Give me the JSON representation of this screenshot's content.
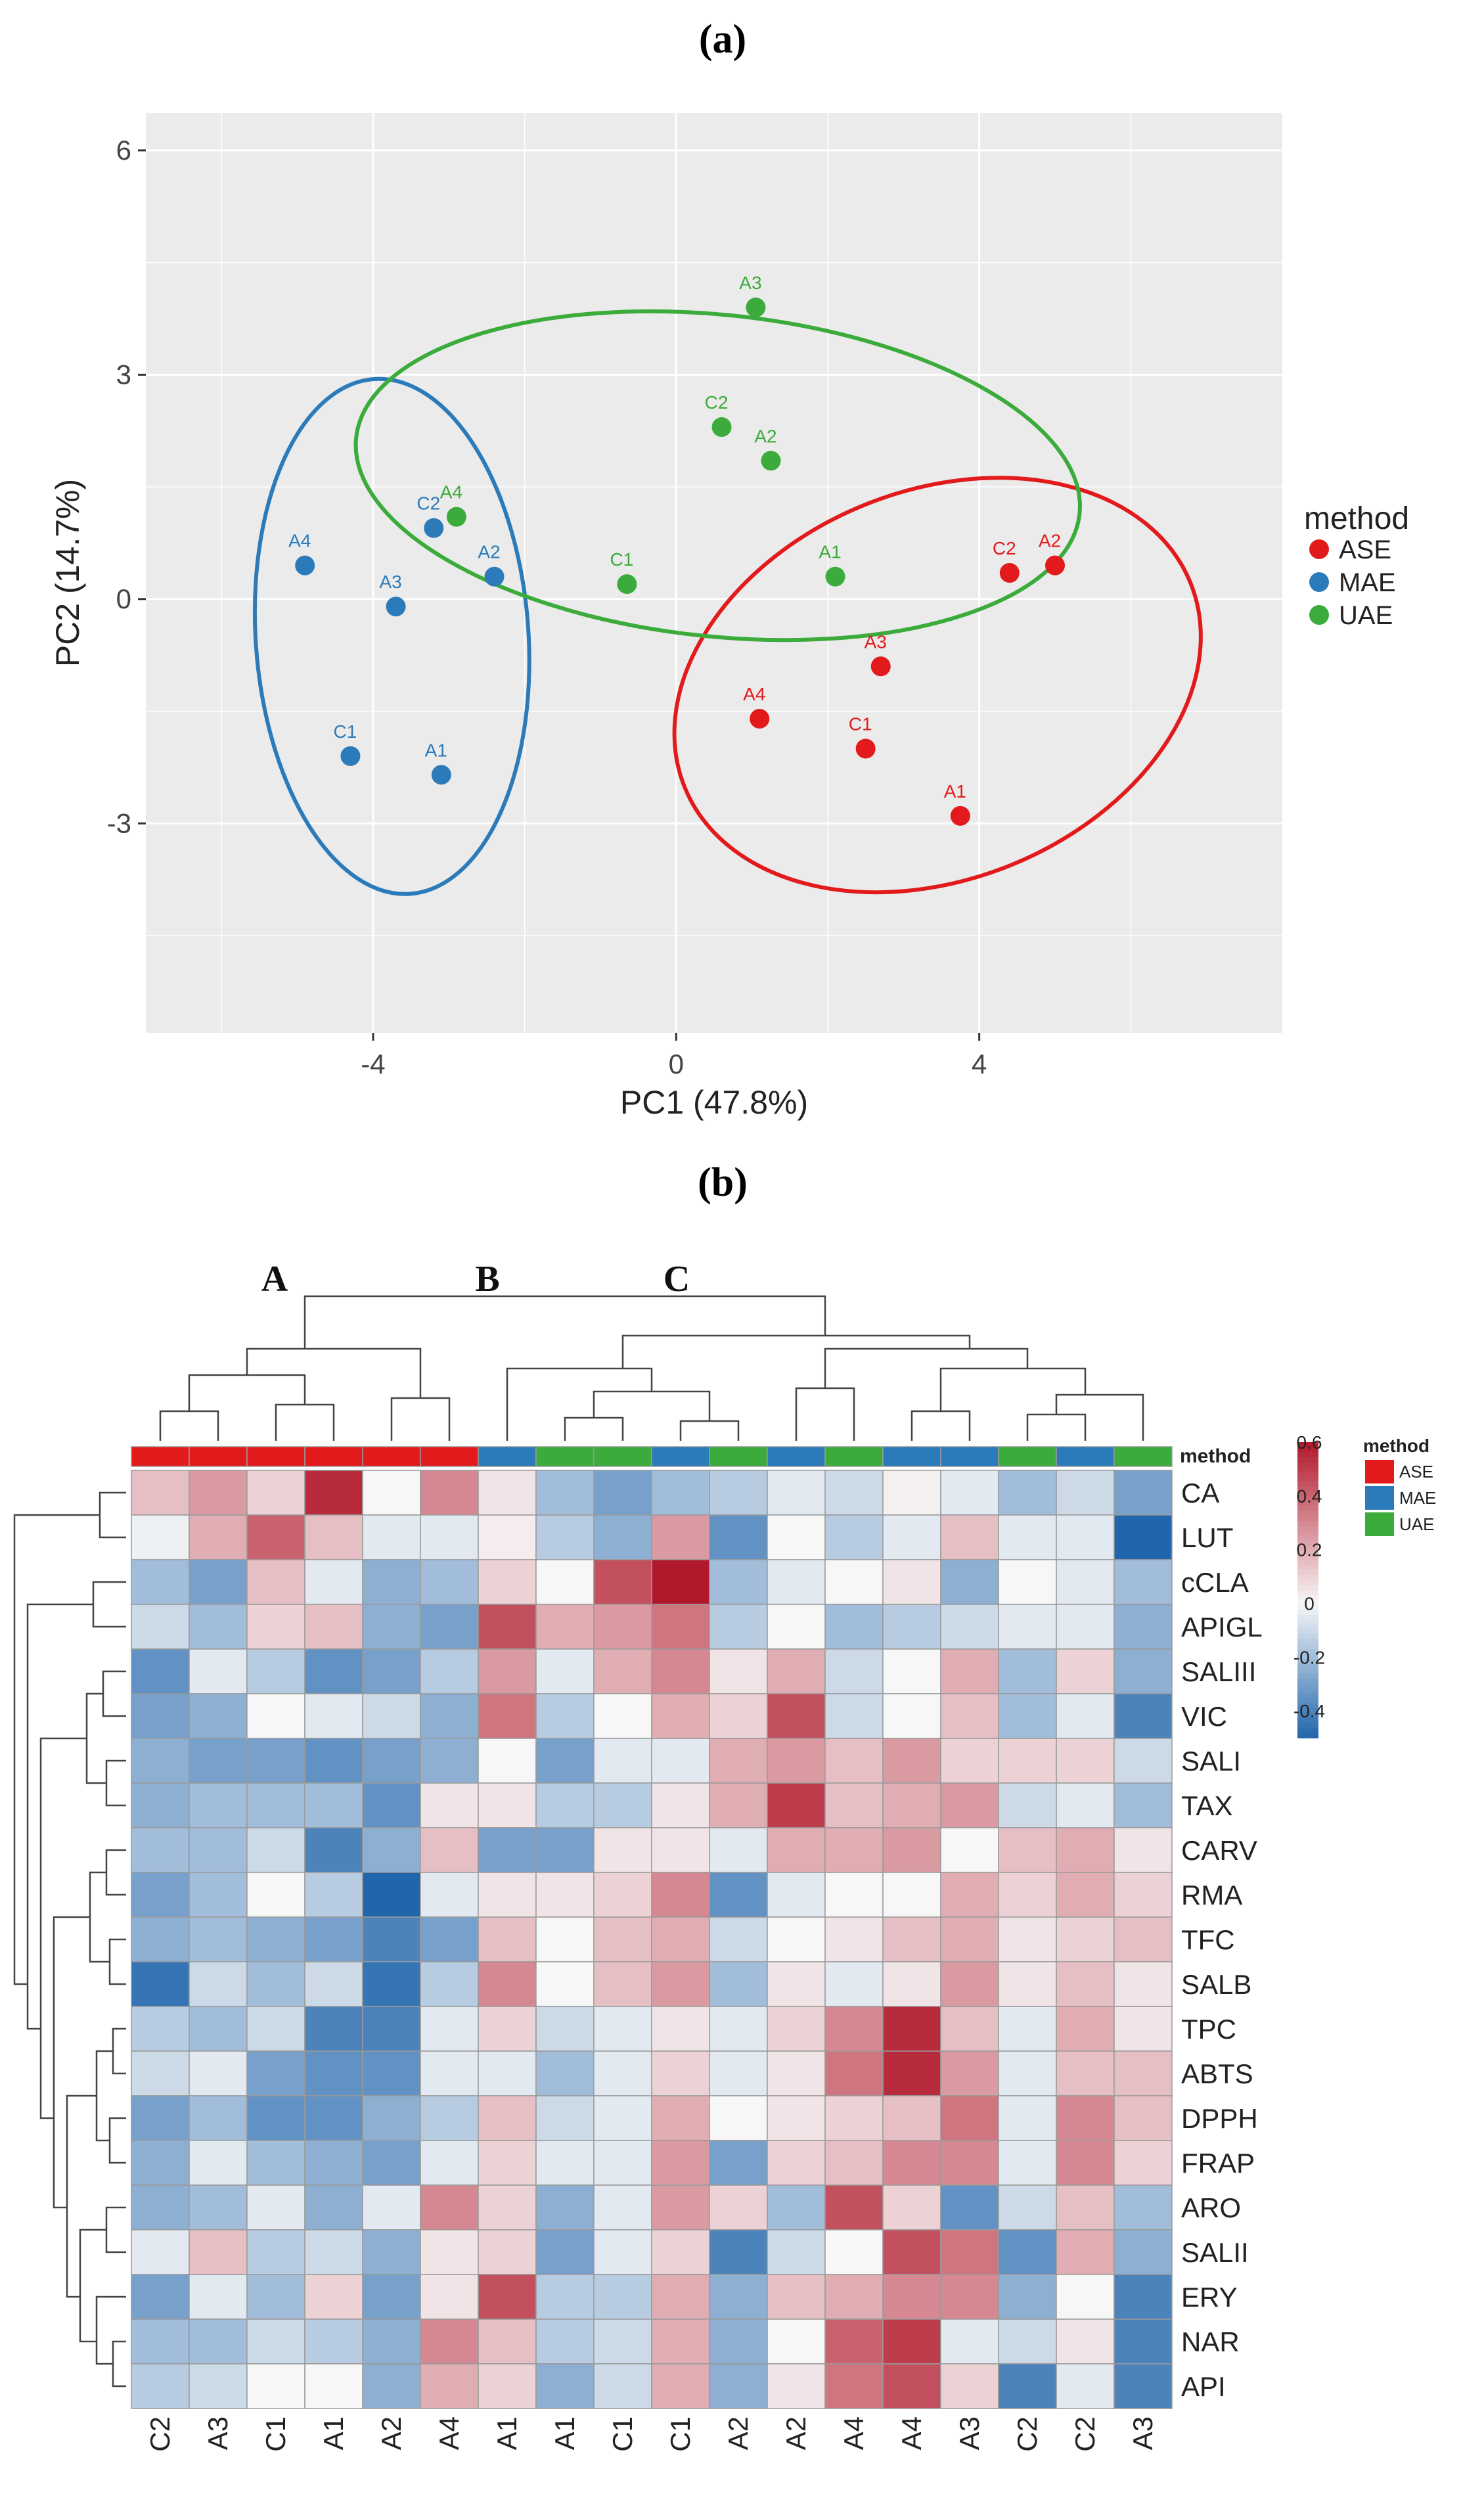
{
  "panel_labels": {
    "a": "(a)",
    "b": "(b)"
  },
  "chart_data": [
    {
      "type": "scatter",
      "title": "",
      "xlabel": "PC1 (47.8%)",
      "ylabel": "PC2 (14.7%)",
      "xlim": [
        -7,
        8
      ],
      "ylim": [
        -5.8,
        6.5
      ],
      "xticks": [
        "-4",
        "0",
        "4"
      ],
      "yticks": [
        "6",
        "3",
        "0",
        "-3"
      ],
      "grid": true,
      "legend": {
        "title": "method",
        "position": "right",
        "entries": [
          "ASE",
          "MAE",
          "UAE"
        ]
      },
      "colors": {
        "ASE": "#e31a1c",
        "MAE": "#2b7bba",
        "UAE": "#3bab3b",
        "panel_bg": "#ebebeb",
        "grid": "#ffffff"
      },
      "series": [
        {
          "name": "ASE",
          "points": [
            {
              "label": "C2",
              "x": 4.4,
              "y": 0.35
            },
            {
              "label": "A2",
              "x": 5.0,
              "y": 0.45
            },
            {
              "label": "A3",
              "x": 2.7,
              "y": -0.9
            },
            {
              "label": "A4",
              "x": 1.1,
              "y": -1.6
            },
            {
              "label": "C1",
              "x": 2.5,
              "y": -2.0
            },
            {
              "label": "A1",
              "x": 3.75,
              "y": -2.9
            }
          ],
          "ellipse": {
            "cx": 3.45,
            "cy": -1.15,
            "rx": 3.6,
            "ry": 2.6,
            "angle_deg": -22
          }
        },
        {
          "name": "MAE",
          "points": [
            {
              "label": "A4",
              "x": -4.9,
              "y": 0.45
            },
            {
              "label": "C2",
              "x": -3.2,
              "y": 0.95
            },
            {
              "label": "A2",
              "x": -2.4,
              "y": 0.3
            },
            {
              "label": "A3",
              "x": -3.7,
              "y": -0.1
            },
            {
              "label": "C1",
              "x": -4.3,
              "y": -2.1
            },
            {
              "label": "A1",
              "x": -3.1,
              "y": -2.35
            }
          ],
          "ellipse": {
            "cx": -3.75,
            "cy": -0.5,
            "rx": 1.8,
            "ry": 3.45,
            "angle_deg": -4
          }
        },
        {
          "name": "UAE",
          "points": [
            {
              "label": "A4",
              "x": -2.9,
              "y": 1.1
            },
            {
              "label": "C1",
              "x": -0.65,
              "y": 0.2
            },
            {
              "label": "A3",
              "x": 1.05,
              "y": 3.9
            },
            {
              "label": "C2",
              "x": 0.6,
              "y": 2.3
            },
            {
              "label": "A2",
              "x": 1.25,
              "y": 1.85
            },
            {
              "label": "A1",
              "x": 2.1,
              "y": 0.3
            }
          ],
          "ellipse": {
            "cx": 0.55,
            "cy": 1.65,
            "rx": 4.8,
            "ry": 2.15,
            "angle_deg": 6
          }
        }
      ]
    },
    {
      "type": "heatmap",
      "title": "",
      "cluster_labels": [
        "A",
        "B",
        "C"
      ],
      "columns": [
        "C2",
        "A3",
        "C1",
        "A1",
        "A2",
        "A4",
        "A1",
        "A1",
        "C1",
        "C1",
        "A2",
        "A2",
        "A4",
        "A4",
        "A3",
        "C2",
        "C2",
        "A3"
      ],
      "column_methods": [
        "ASE",
        "ASE",
        "ASE",
        "ASE",
        "ASE",
        "ASE",
        "MAE",
        "UAE",
        "UAE",
        "MAE",
        "UAE",
        "MAE",
        "UAE",
        "MAE",
        "MAE",
        "UAE",
        "MAE",
        "UAE"
      ],
      "annotation_title": "method",
      "rows": [
        "CA",
        "LUT",
        "cCLA",
        "APIGL",
        "SALIII",
        "VIC",
        "SALI",
        "TAX",
        "CARV",
        "RMA",
        "TFC",
        "SALB",
        "TPC",
        "ABTS",
        "DPPH",
        "FRAP",
        "ARO",
        "SALII",
        "ERY",
        "NAR",
        "API"
      ],
      "values": [
        [
          0.15,
          0.25,
          0.1,
          0.55,
          0.0,
          0.3,
          0.05,
          -0.2,
          -0.3,
          -0.2,
          -0.15,
          -0.05,
          -0.1,
          0.02,
          -0.05,
          -0.2,
          -0.1,
          -0.3
        ],
        [
          -0.02,
          0.2,
          0.4,
          0.15,
          -0.05,
          -0.05,
          0.03,
          -0.15,
          -0.25,
          0.25,
          -0.35,
          0.0,
          -0.15,
          -0.05,
          0.15,
          -0.05,
          -0.05,
          -0.5
        ],
        [
          -0.2,
          -0.3,
          0.15,
          -0.05,
          -0.25,
          -0.2,
          0.1,
          0.0,
          0.45,
          0.6,
          -0.2,
          -0.05,
          0.0,
          0.05,
          -0.25,
          0.0,
          -0.05,
          -0.2
        ],
        [
          -0.1,
          -0.2,
          0.1,
          0.15,
          -0.25,
          -0.3,
          0.45,
          0.2,
          0.25,
          0.35,
          -0.15,
          0.0,
          -0.2,
          -0.15,
          -0.1,
          -0.05,
          -0.05,
          -0.25
        ],
        [
          -0.35,
          -0.05,
          -0.15,
          -0.35,
          -0.3,
          -0.15,
          0.25,
          -0.05,
          0.2,
          0.3,
          0.05,
          0.2,
          -0.1,
          0.0,
          0.2,
          -0.2,
          0.1,
          -0.25
        ],
        [
          -0.3,
          -0.25,
          0.0,
          -0.05,
          -0.1,
          -0.25,
          0.35,
          -0.15,
          0.0,
          0.2,
          0.1,
          0.45,
          -0.1,
          0.0,
          0.15,
          -0.2,
          -0.05,
          -0.4
        ],
        [
          -0.25,
          -0.3,
          -0.3,
          -0.35,
          -0.3,
          -0.25,
          0.0,
          -0.3,
          -0.05,
          -0.05,
          0.2,
          0.25,
          0.15,
          0.25,
          0.1,
          0.1,
          0.1,
          -0.1
        ],
        [
          -0.25,
          -0.2,
          -0.2,
          -0.2,
          -0.35,
          0.05,
          0.05,
          -0.15,
          -0.15,
          0.05,
          0.2,
          0.5,
          0.15,
          0.2,
          0.25,
          -0.1,
          -0.05,
          -0.2
        ],
        [
          -0.2,
          -0.2,
          -0.1,
          -0.4,
          -0.25,
          0.15,
          -0.3,
          -0.3,
          0.05,
          0.05,
          -0.05,
          0.2,
          0.2,
          0.25,
          0.0,
          0.15,
          0.2,
          0.05
        ],
        [
          -0.3,
          -0.2,
          0.0,
          -0.15,
          -0.5,
          -0.05,
          0.05,
          0.05,
          0.1,
          0.3,
          -0.35,
          -0.05,
          0.0,
          0.0,
          0.2,
          0.1,
          0.2,
          0.1
        ],
        [
          -0.25,
          -0.2,
          -0.25,
          -0.3,
          -0.4,
          -0.3,
          0.15,
          0.0,
          0.15,
          0.2,
          -0.1,
          0.0,
          0.05,
          0.15,
          0.2,
          0.05,
          0.1,
          0.15
        ],
        [
          -0.45,
          -0.1,
          -0.2,
          -0.1,
          -0.45,
          -0.15,
          0.3,
          0.0,
          0.15,
          0.25,
          -0.2,
          0.05,
          -0.05,
          0.05,
          0.25,
          0.05,
          0.15,
          0.05
        ],
        [
          -0.15,
          -0.2,
          -0.1,
          -0.4,
          -0.4,
          -0.05,
          0.1,
          -0.1,
          -0.05,
          0.05,
          -0.05,
          0.1,
          0.3,
          0.55,
          0.15,
          -0.05,
          0.2,
          0.05
        ],
        [
          -0.1,
          -0.05,
          -0.3,
          -0.35,
          -0.35,
          -0.05,
          -0.05,
          -0.2,
          -0.05,
          0.1,
          -0.05,
          0.05,
          0.35,
          0.55,
          0.25,
          -0.05,
          0.15,
          0.15
        ],
        [
          -0.3,
          -0.2,
          -0.35,
          -0.35,
          -0.25,
          -0.15,
          0.15,
          -0.1,
          -0.05,
          0.2,
          0.0,
          0.05,
          0.1,
          0.15,
          0.35,
          -0.05,
          0.3,
          0.15
        ],
        [
          -0.25,
          -0.05,
          -0.2,
          -0.25,
          -0.3,
          -0.05,
          0.1,
          -0.05,
          -0.05,
          0.25,
          -0.3,
          0.1,
          0.15,
          0.3,
          0.3,
          -0.05,
          0.3,
          0.1
        ],
        [
          -0.25,
          -0.2,
          -0.05,
          -0.25,
          -0.05,
          0.3,
          0.1,
          -0.25,
          -0.05,
          0.25,
          0.1,
          -0.2,
          0.45,
          0.1,
          -0.35,
          -0.1,
          0.15,
          -0.2
        ],
        [
          -0.05,
          0.15,
          -0.15,
          -0.1,
          -0.25,
          0.05,
          0.1,
          -0.3,
          -0.05,
          0.1,
          -0.4,
          -0.1,
          0.0,
          0.45,
          0.35,
          -0.35,
          0.2,
          -0.25
        ],
        [
          -0.3,
          -0.05,
          -0.2,
          0.1,
          -0.3,
          0.05,
          0.45,
          -0.15,
          -0.15,
          0.2,
          -0.25,
          0.15,
          0.2,
          0.3,
          0.3,
          -0.25,
          0.0,
          -0.4
        ],
        [
          -0.2,
          -0.2,
          -0.1,
          -0.15,
          -0.25,
          0.3,
          0.15,
          -0.15,
          -0.1,
          0.2,
          -0.25,
          0.0,
          0.4,
          0.5,
          -0.05,
          -0.1,
          0.05,
          -0.4
        ],
        [
          -0.15,
          -0.1,
          0.0,
          0.0,
          -0.25,
          0.2,
          0.1,
          -0.25,
          -0.1,
          0.2,
          -0.25,
          0.05,
          0.35,
          0.45,
          0.1,
          -0.4,
          -0.05,
          -0.4
        ]
      ],
      "color_scale": {
        "min": -0.5,
        "max": 0.6,
        "low": "#2166ac",
        "mid": "#f7f7f7",
        "high": "#b2182b",
        "ticks": [
          "0.6",
          "0.4",
          "0.2",
          "0",
          "-0.2",
          "-0.4"
        ]
      },
      "legend": {
        "title": "method",
        "entries": [
          "ASE",
          "MAE",
          "UAE"
        ]
      },
      "annotation_colors": {
        "ASE": "#e31a1c",
        "MAE": "#2b7bba",
        "UAE": "#3bab3b"
      }
    }
  ]
}
